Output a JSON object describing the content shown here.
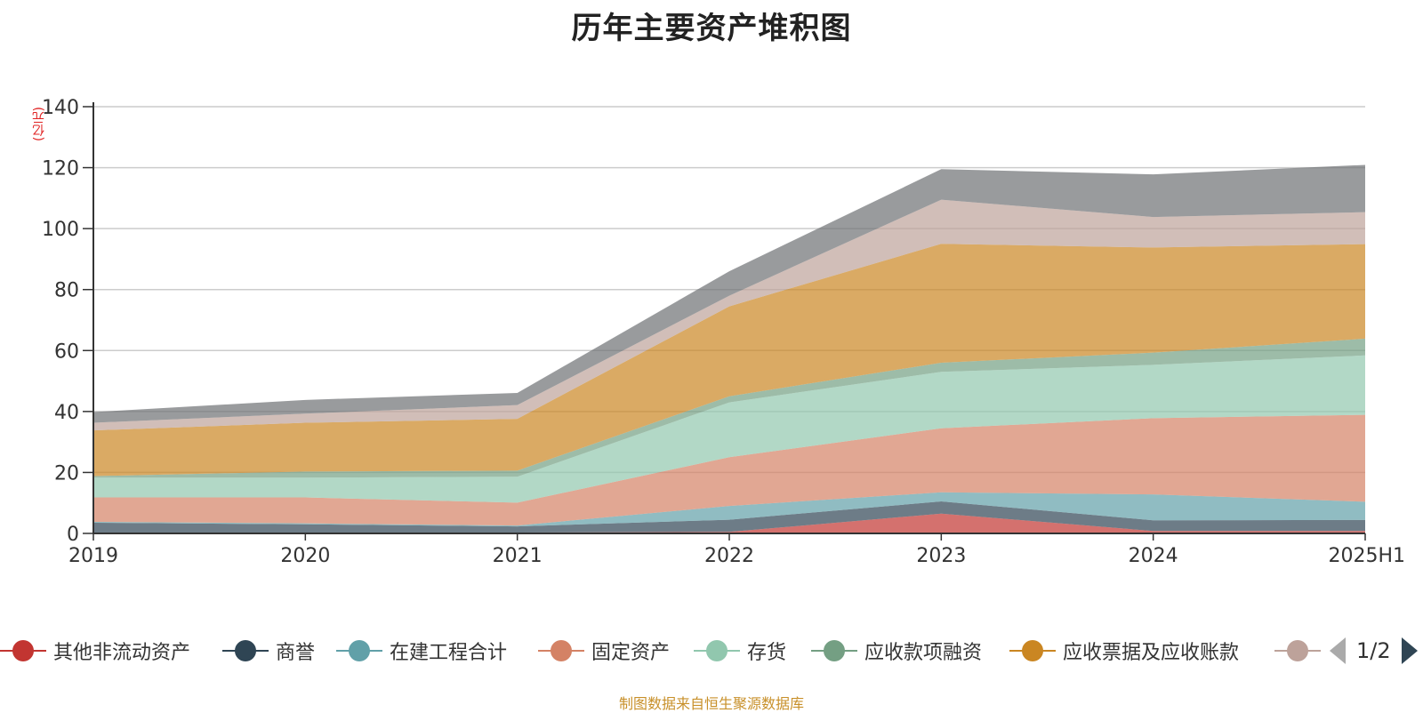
{
  "title": "历年主要资产堆积图",
  "source_note": "制图数据来自恒生聚源数据库",
  "unit": "(亿元)",
  "legend": {
    "page_text": "1/2",
    "items": [
      {
        "label": "其他非流动资产",
        "color": "#c23531"
      },
      {
        "label": "商誉",
        "color": "#2f4554"
      },
      {
        "label": "在建工程合计",
        "color": "#61a0a8"
      },
      {
        "label": "固定资产",
        "color": "#d48265"
      },
      {
        "label": "存货",
        "color": "#91c7ae"
      },
      {
        "label": "应收款项融资",
        "color": "#749f83"
      },
      {
        "label": "应收票据及应收账款",
        "color": "#ca8622"
      },
      {
        "label": "",
        "color": "#bda29a"
      }
    ]
  },
  "chart_data": {
    "type": "area",
    "stacked": true,
    "title": "历年主要资产堆积图",
    "ylabel": "(亿元)",
    "ylim": [
      0,
      140
    ],
    "yticks": [
      0,
      20,
      40,
      60,
      80,
      100,
      120,
      140
    ],
    "grid": true,
    "legend_position": "bottom",
    "categories": [
      "2019",
      "2020",
      "2021",
      "2022",
      "2023",
      "2024",
      "2025H1"
    ],
    "series": [
      {
        "name": "其他非流动资产",
        "color": "#c23531",
        "values": [
          0.3,
          0.3,
          0.3,
          0.5,
          6.5,
          0.8,
          0.8
        ]
      },
      {
        "name": "商誉",
        "color": "#2f4554",
        "values": [
          3.2,
          2.7,
          2.0,
          4.0,
          4.0,
          3.5,
          3.6
        ]
      },
      {
        "name": "在建工程合计",
        "color": "#61a0a8",
        "values": [
          0.3,
          0.3,
          0.3,
          4.5,
          3.0,
          8.5,
          6.0
        ]
      },
      {
        "name": "固定资产",
        "color": "#d48265",
        "values": [
          8.0,
          8.5,
          7.5,
          16.0,
          21.0,
          25.0,
          28.5
        ]
      },
      {
        "name": "存货",
        "color": "#91c7ae",
        "values": [
          6.5,
          6.5,
          8.5,
          18.0,
          18.5,
          17.5,
          19.5
        ]
      },
      {
        "name": "应收款项融资",
        "color": "#749f83",
        "values": [
          0.5,
          2.0,
          2.0,
          2.0,
          3.0,
          4.0,
          5.5
        ]
      },
      {
        "name": "应收票据及应收账款",
        "color": "#ca8622",
        "values": [
          15.0,
          16.0,
          17.0,
          29.5,
          39.0,
          34.5,
          31.0
        ]
      },
      {
        "name": "",
        "color": "#bda29a",
        "values": [
          2.5,
          3.0,
          4.5,
          3.5,
          14.5,
          10.0,
          10.5
        ]
      },
      {
        "name": "",
        "color": "#6e7074",
        "values": [
          3.5,
          4.5,
          4.0,
          8.0,
          10.0,
          14.0,
          15.5
        ]
      }
    ]
  }
}
